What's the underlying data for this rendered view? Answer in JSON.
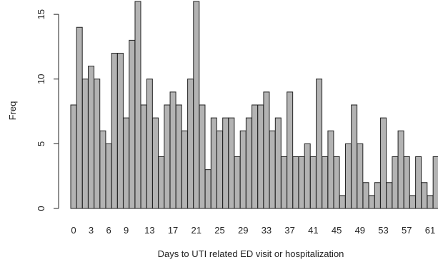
{
  "chart_data": {
    "type": "bar",
    "title": "",
    "xlabel": "Days to UTI related ED visit or hospitalization",
    "ylabel": "Freq",
    "ylim": [
      0,
      16
    ],
    "yticks": [
      "0",
      "5",
      "10",
      "15"
    ],
    "categories": [
      "0",
      "1",
      "2",
      "3",
      "4",
      "5",
      "6",
      "7",
      "8",
      "9",
      "10",
      "11",
      "12",
      "13",
      "14",
      "15",
      "16",
      "17",
      "18",
      "19",
      "20",
      "21",
      "22",
      "23",
      "24",
      "25",
      "26",
      "27",
      "28",
      "29",
      "30",
      "31",
      "32",
      "33",
      "34",
      "35",
      "36",
      "37",
      "38",
      "39",
      "40",
      "41",
      "42",
      "43",
      "44",
      "45",
      "46",
      "47",
      "48",
      "49",
      "50",
      "51",
      "52",
      "53",
      "54",
      "55",
      "56",
      "57",
      "58",
      "59",
      "60",
      "61",
      "62",
      "63"
    ],
    "tick_labels": [
      "0",
      "3",
      "6",
      "9",
      "13",
      "17",
      "21",
      "25",
      "29",
      "33",
      "37",
      "41",
      "45",
      "49",
      "53",
      "57",
      "61"
    ],
    "values": [
      8,
      14,
      10,
      11,
      10,
      6,
      5,
      12,
      12,
      7,
      13,
      16,
      8,
      10,
      7,
      4,
      8,
      9,
      8,
      6,
      10,
      16,
      8,
      3,
      7,
      6,
      7,
      7,
      4,
      6,
      7,
      8,
      8,
      9,
      6,
      7,
      4,
      9,
      4,
      4,
      5,
      4,
      10,
      4,
      6,
      4,
      1,
      5,
      8,
      5,
      2,
      1,
      2,
      7,
      2,
      4,
      6,
      4,
      1,
      4,
      2,
      1,
      4,
      1
    ],
    "bar_fill": "#b3b3b3",
    "bar_stroke": "#222222",
    "grid": false,
    "legend": "none"
  }
}
